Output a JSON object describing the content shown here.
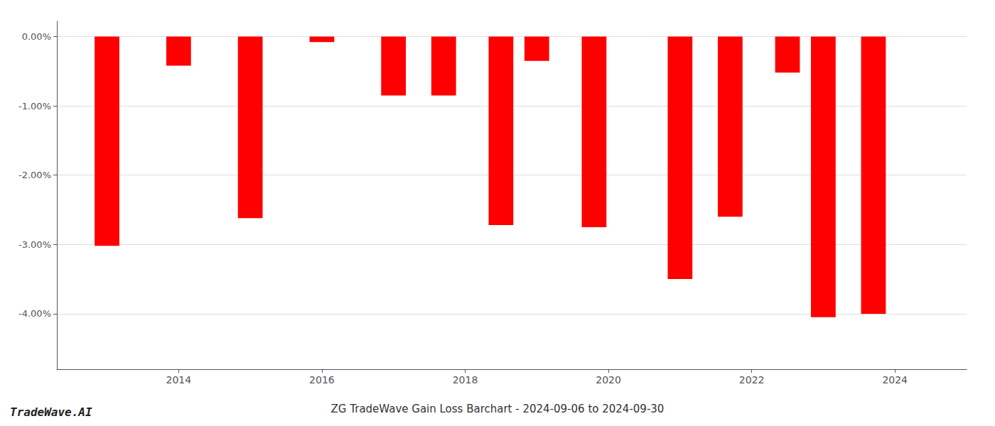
{
  "chart_data": {
    "type": "bar",
    "title": "ZG TradeWave Gain Loss Barchart - 2024-09-06 to 2024-09-30",
    "annotations": [
      "TradeWave.AI"
    ],
    "x": [
      2013,
      2014,
      2015,
      2016,
      2017,
      2017.7,
      2018.5,
      2019,
      2019.8,
      2021,
      2021.7,
      2022.5,
      2023,
      2023.7
    ],
    "values": [
      -3.02,
      -0.42,
      -2.62,
      -0.08,
      -0.85,
      -0.85,
      -2.72,
      -0.35,
      -2.75,
      -3.5,
      -2.6,
      -0.52,
      -4.05,
      -4.0
    ],
    "color": "#ff0000",
    "xlim": [
      2012.3,
      2025.0
    ],
    "xticks": [
      2014,
      2016,
      2018,
      2020,
      2022,
      2024
    ],
    "ylim": [
      -4.8,
      0.22
    ],
    "yticks": [
      {
        "value": 0.0,
        "label": "0.00%"
      },
      {
        "value": -1.0,
        "label": "-1.00%"
      },
      {
        "value": -2.0,
        "label": "-2.00%"
      },
      {
        "value": -3.0,
        "label": "-3.00%"
      },
      {
        "value": -4.0,
        "label": "-4.00%"
      }
    ],
    "grid": true
  }
}
